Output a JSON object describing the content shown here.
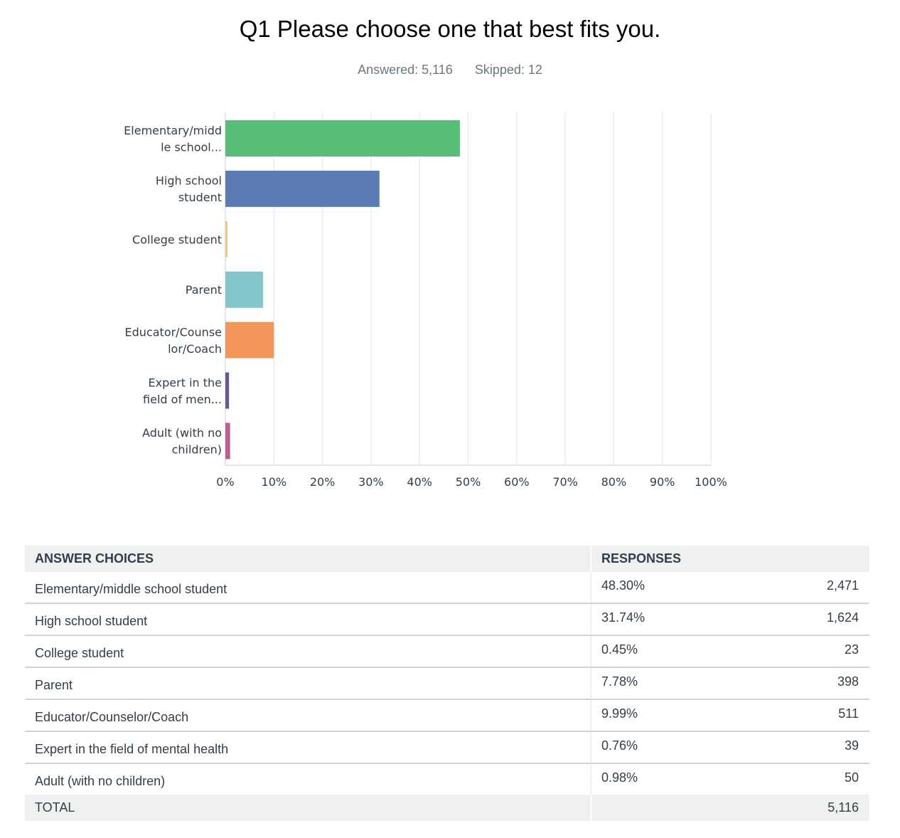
{
  "question_title": "Q1 Please choose one that best fits you.",
  "answered": "Answered: 5,116",
  "skipped": "Skipped: 12",
  "chart_data": {
    "type": "bar",
    "orientation": "horizontal",
    "categories": [
      [
        "Elementary/midd",
        "le school..."
      ],
      [
        "High school",
        "student"
      ],
      [
        "College student"
      ],
      [
        "Parent"
      ],
      [
        "Educator/Counse",
        "lor/Coach"
      ],
      [
        "Expert in the",
        "field of men..."
      ],
      [
        "Adult (with no",
        "children)"
      ]
    ],
    "values": [
      48.3,
      31.74,
      0.45,
      7.78,
      9.99,
      0.76,
      0.98
    ],
    "colors": [
      "#57bf75",
      "#5a7bb3",
      "#f6ca6d",
      "#84c6cc",
      "#f29558",
      "#6c5690",
      "#c55b95"
    ],
    "xlim": [
      0,
      100
    ],
    "xticks": [
      "0%",
      "10%",
      "20%",
      "30%",
      "40%",
      "50%",
      "60%",
      "70%",
      "80%",
      "90%",
      "100%"
    ],
    "grid": true
  },
  "table": {
    "header_choices": "ANSWER CHOICES",
    "header_responses": "RESPONSES",
    "rows": [
      {
        "choice": "Elementary/middle school student",
        "percent": "48.30%",
        "count": "2,471"
      },
      {
        "choice": "High school student",
        "percent": "31.74%",
        "count": "1,624"
      },
      {
        "choice": "College student",
        "percent": "0.45%",
        "count": "23"
      },
      {
        "choice": "Parent",
        "percent": "7.78%",
        "count": "398"
      },
      {
        "choice": "Educator/Counselor/Coach",
        "percent": "9.99%",
        "count": "511"
      },
      {
        "choice": "Expert in the field of mental health",
        "percent": "0.76%",
        "count": "39"
      },
      {
        "choice": "Adult (with no children)",
        "percent": "0.98%",
        "count": "50"
      }
    ],
    "total_label": "TOTAL",
    "total_value": "5,116"
  }
}
